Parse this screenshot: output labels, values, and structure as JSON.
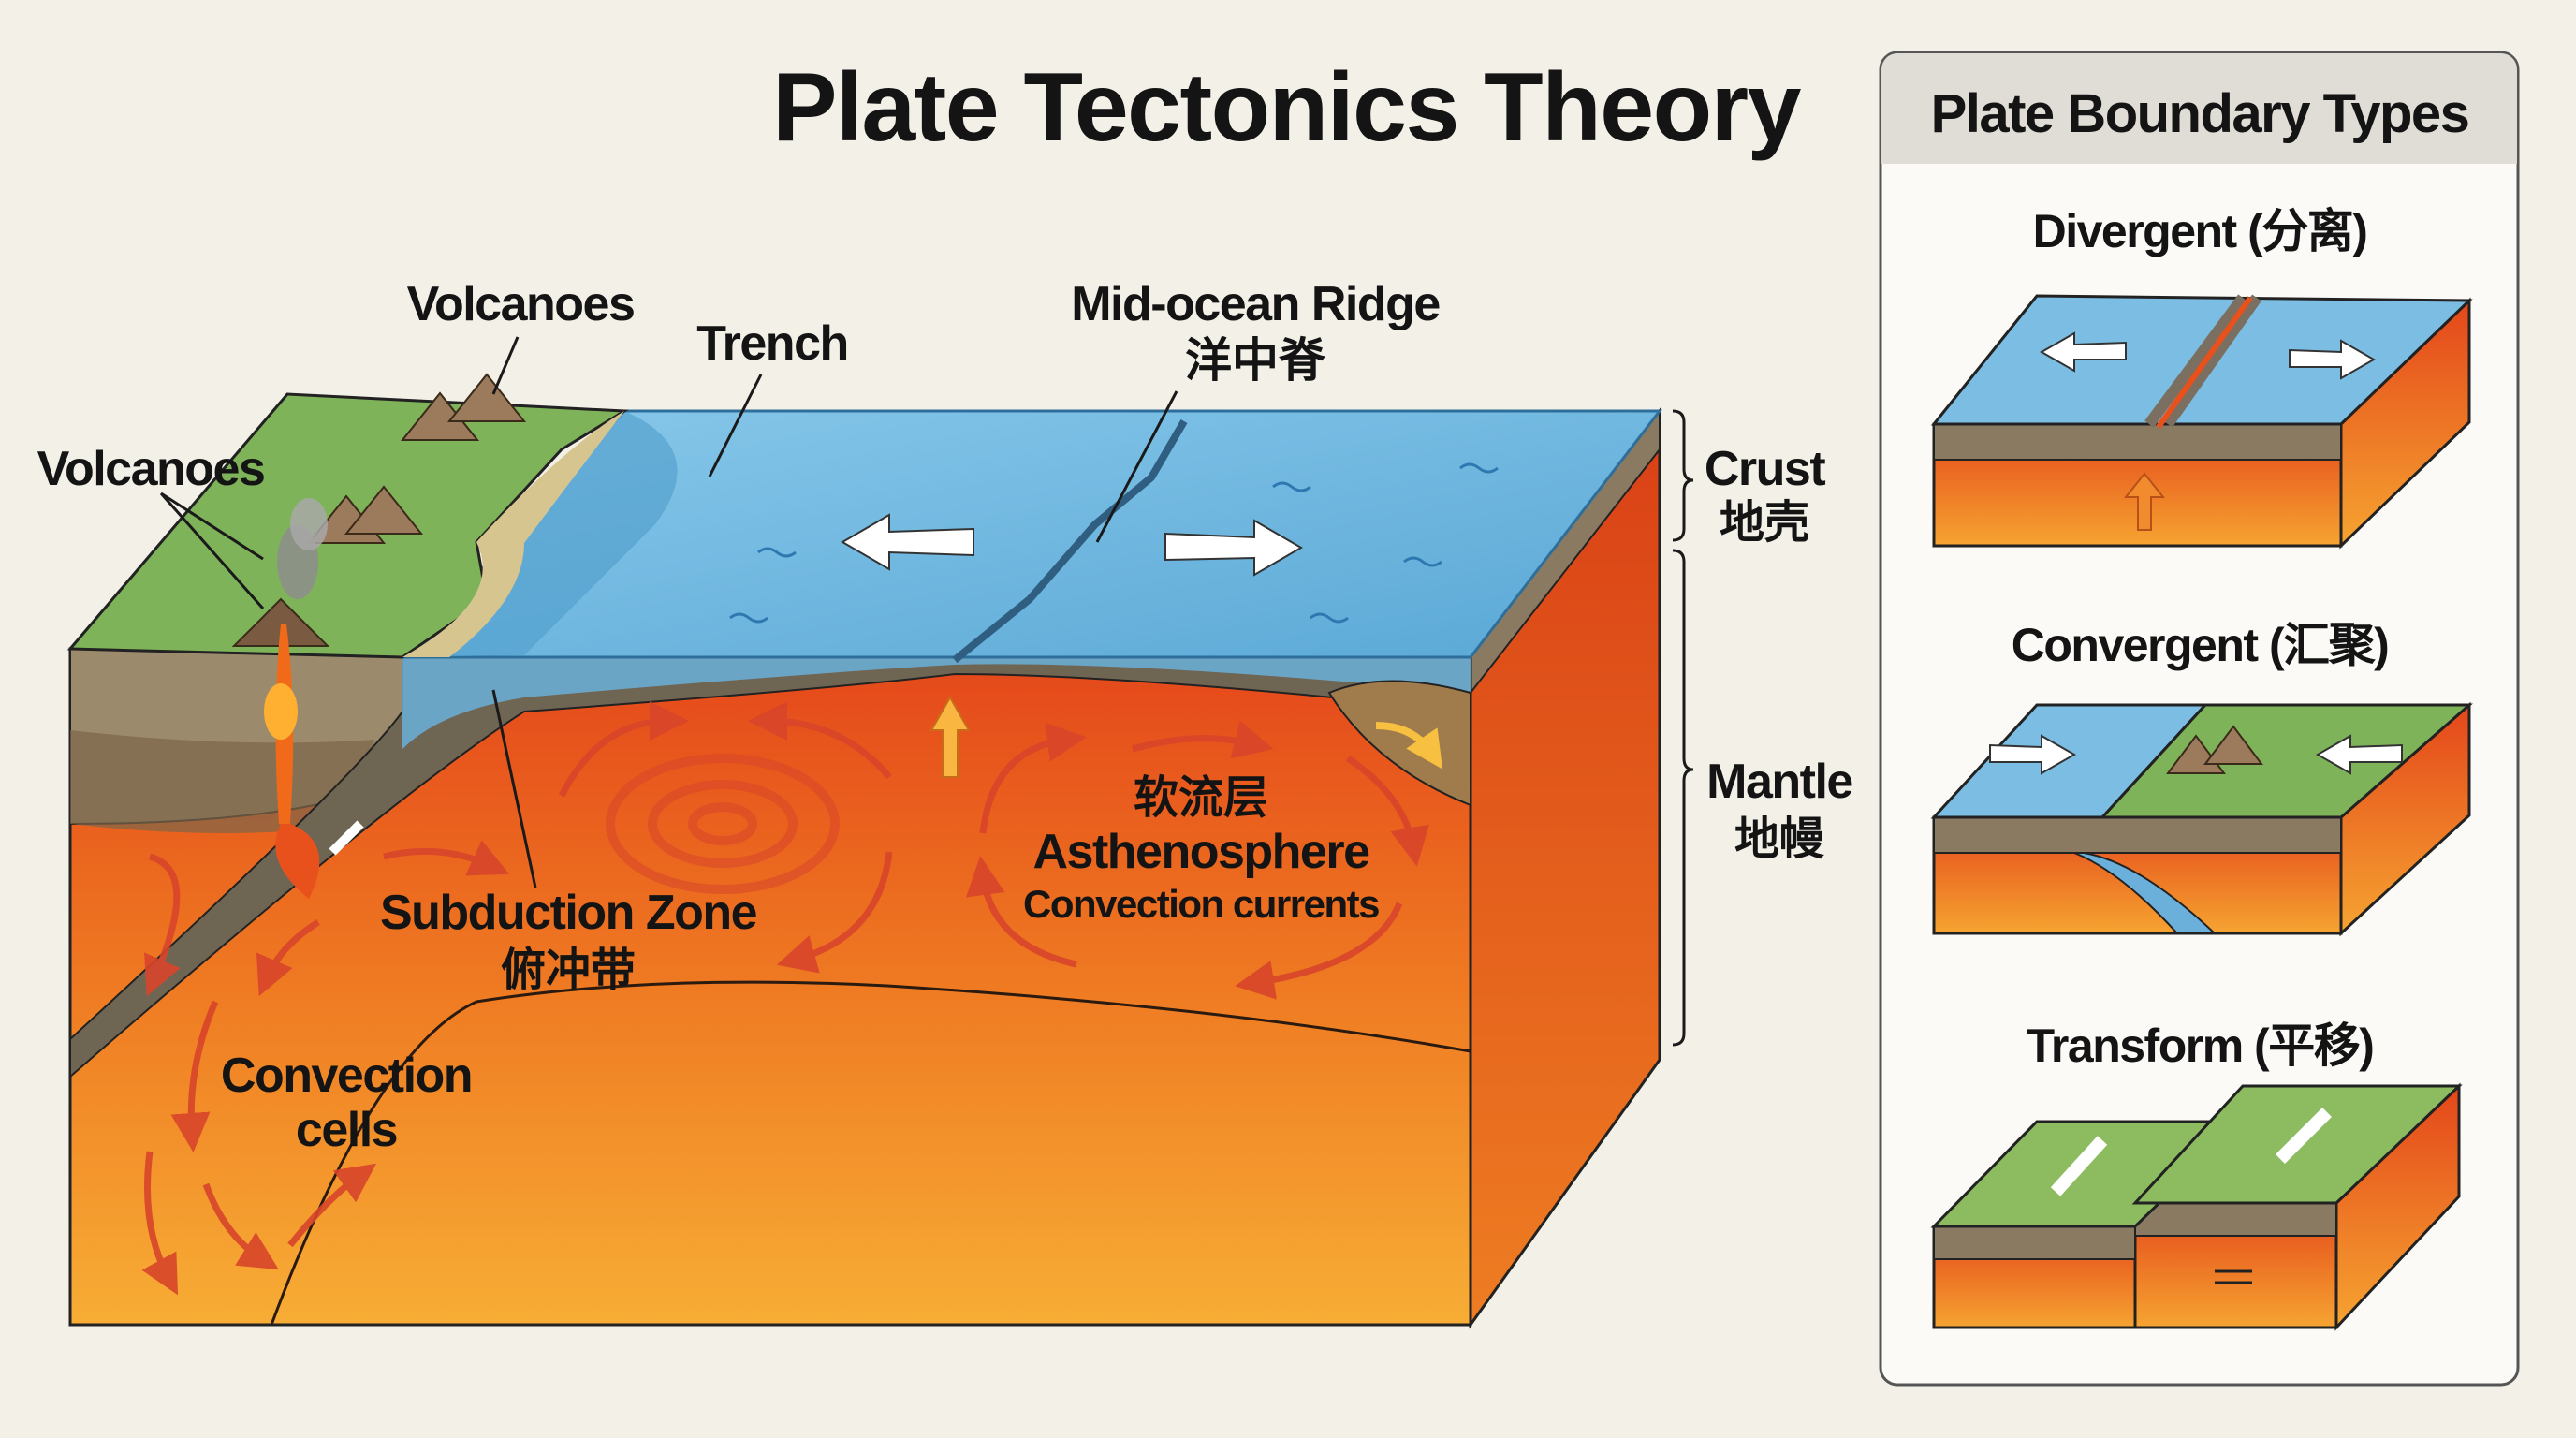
{
  "title": "Plate Tectonics Theory",
  "main_diagram": {
    "volcanoes_top": "Volcanoes",
    "volcanoes_left": "Volcanoes",
    "trench": "Trench",
    "ridge_en": "Mid-ocean Ridge",
    "ridge_zh": "洋中脊",
    "crust_en": "Crust",
    "crust_zh": "地壳",
    "mantle_en": "Mantle",
    "mantle_zh": "地幔",
    "subduction_en": "Subduction Zone",
    "subduction_zh": "俯冲带",
    "asthenosphere_zh": "软流层",
    "asthenosphere_en": "Asthenosphere",
    "convection_currents": "Convection currents",
    "convection_cells_1": "Convection",
    "convection_cells_2": "cells"
  },
  "panel": {
    "title": "Plate Boundary Types",
    "types": [
      {
        "label": "Divergent (分离)"
      },
      {
        "label": "Convergent (汇聚)"
      },
      {
        "label": "Transform (平移)"
      }
    ]
  },
  "colors": {
    "background": "#f3f0e8",
    "ocean": "#6fb6de",
    "land": "#7fb35a",
    "crust": "#8a7a62",
    "mantle_hot": "#e8501c",
    "mantle_warm": "#f5a030",
    "convection_arrow": "#d8452a"
  }
}
